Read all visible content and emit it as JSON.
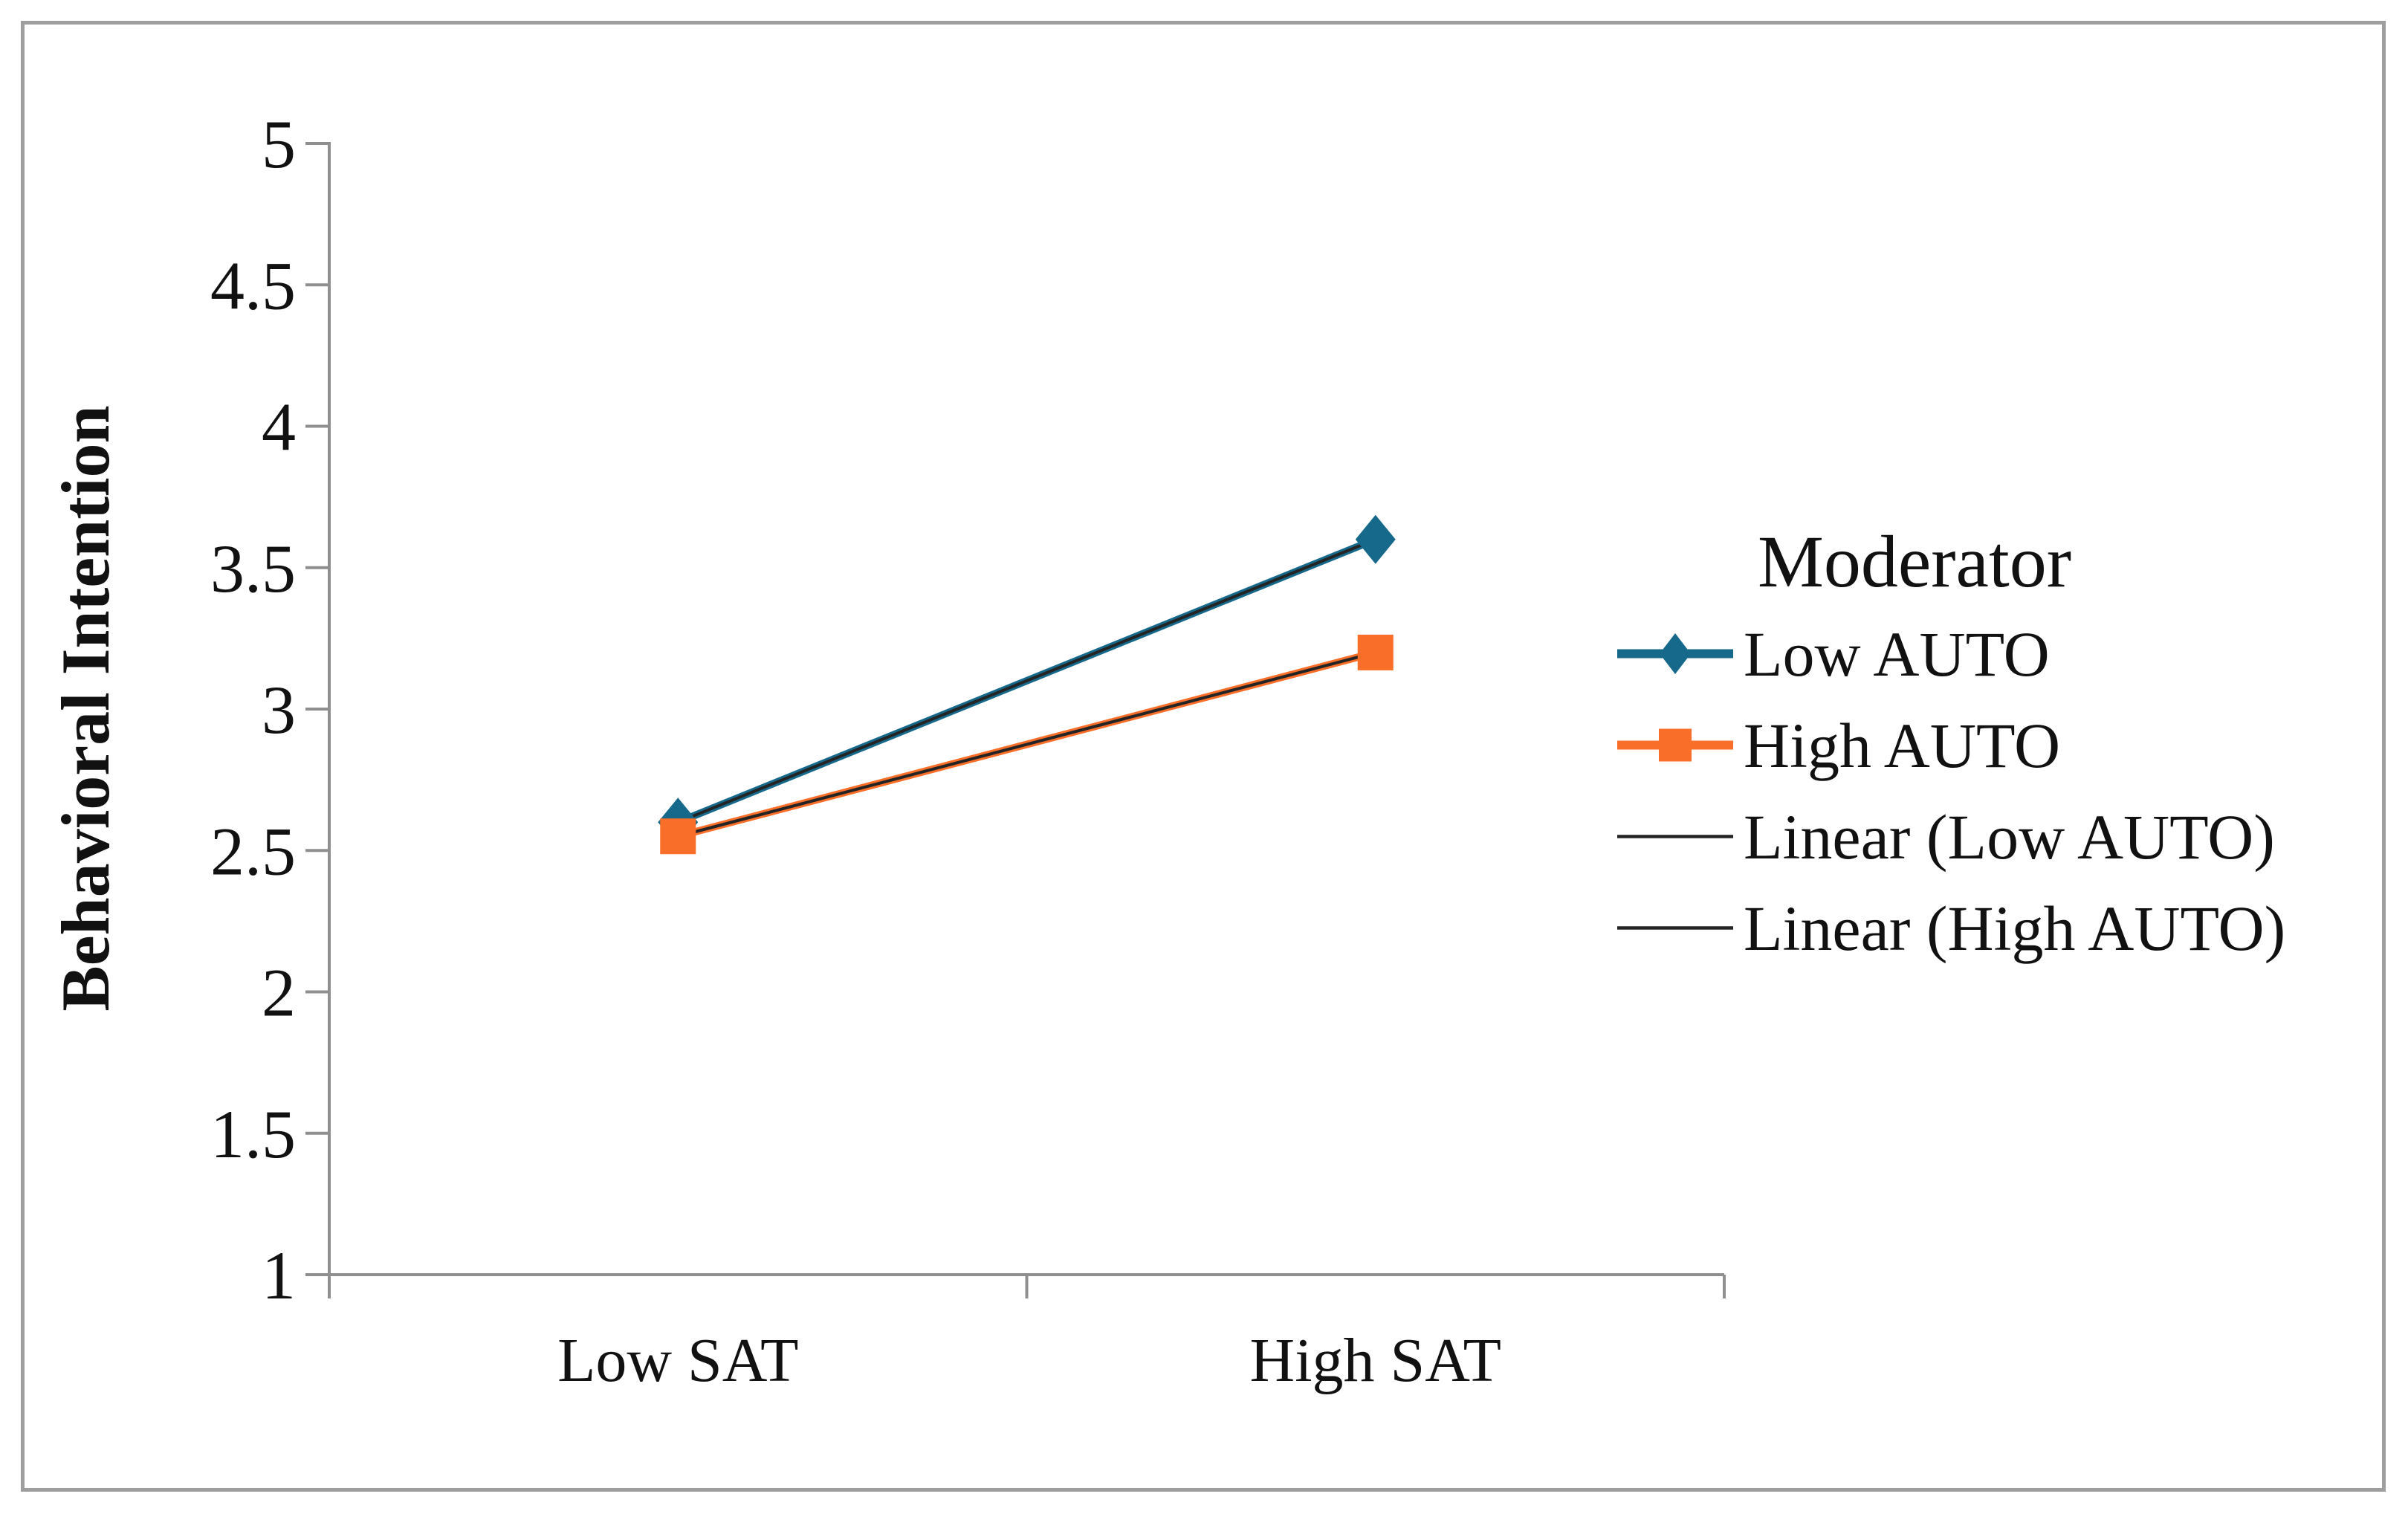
{
  "chart_data": {
    "type": "line",
    "categories": [
      "Low SAT",
      "High SAT"
    ],
    "series": [
      {
        "name": "Low AUTO",
        "values": [
          2.6,
          3.6
        ],
        "color": "#17698C",
        "marker": "diamond",
        "line_width": 10,
        "trendline": false
      },
      {
        "name": "High AUTO",
        "values": [
          2.55,
          3.2
        ],
        "color": "#F96E28",
        "marker": "square",
        "line_width": 10,
        "trendline": false
      },
      {
        "name": "Linear (Low AUTO)",
        "values": [
          2.6,
          3.6
        ],
        "color": "#242424",
        "marker": "none",
        "line_width": 4,
        "trendline": true
      },
      {
        "name": "Linear (High AUTO)",
        "values": [
          2.55,
          3.2
        ],
        "color": "#242424",
        "marker": "none",
        "line_width": 4,
        "trendline": true
      }
    ],
    "title": "",
    "xlabel": "",
    "ylabel": "Behavioral Intention",
    "ylim": [
      1,
      5
    ],
    "ytick_step": 0.5,
    "yticks": [
      "1",
      "1.5",
      "2",
      "2.5",
      "3",
      "3.5",
      "4",
      "4.5",
      "5"
    ],
    "legend": {
      "title": "Moderator",
      "position": "right"
    },
    "grid": false,
    "axis_color": "#8F8F8F",
    "border_color": "#9E9E9E"
  }
}
